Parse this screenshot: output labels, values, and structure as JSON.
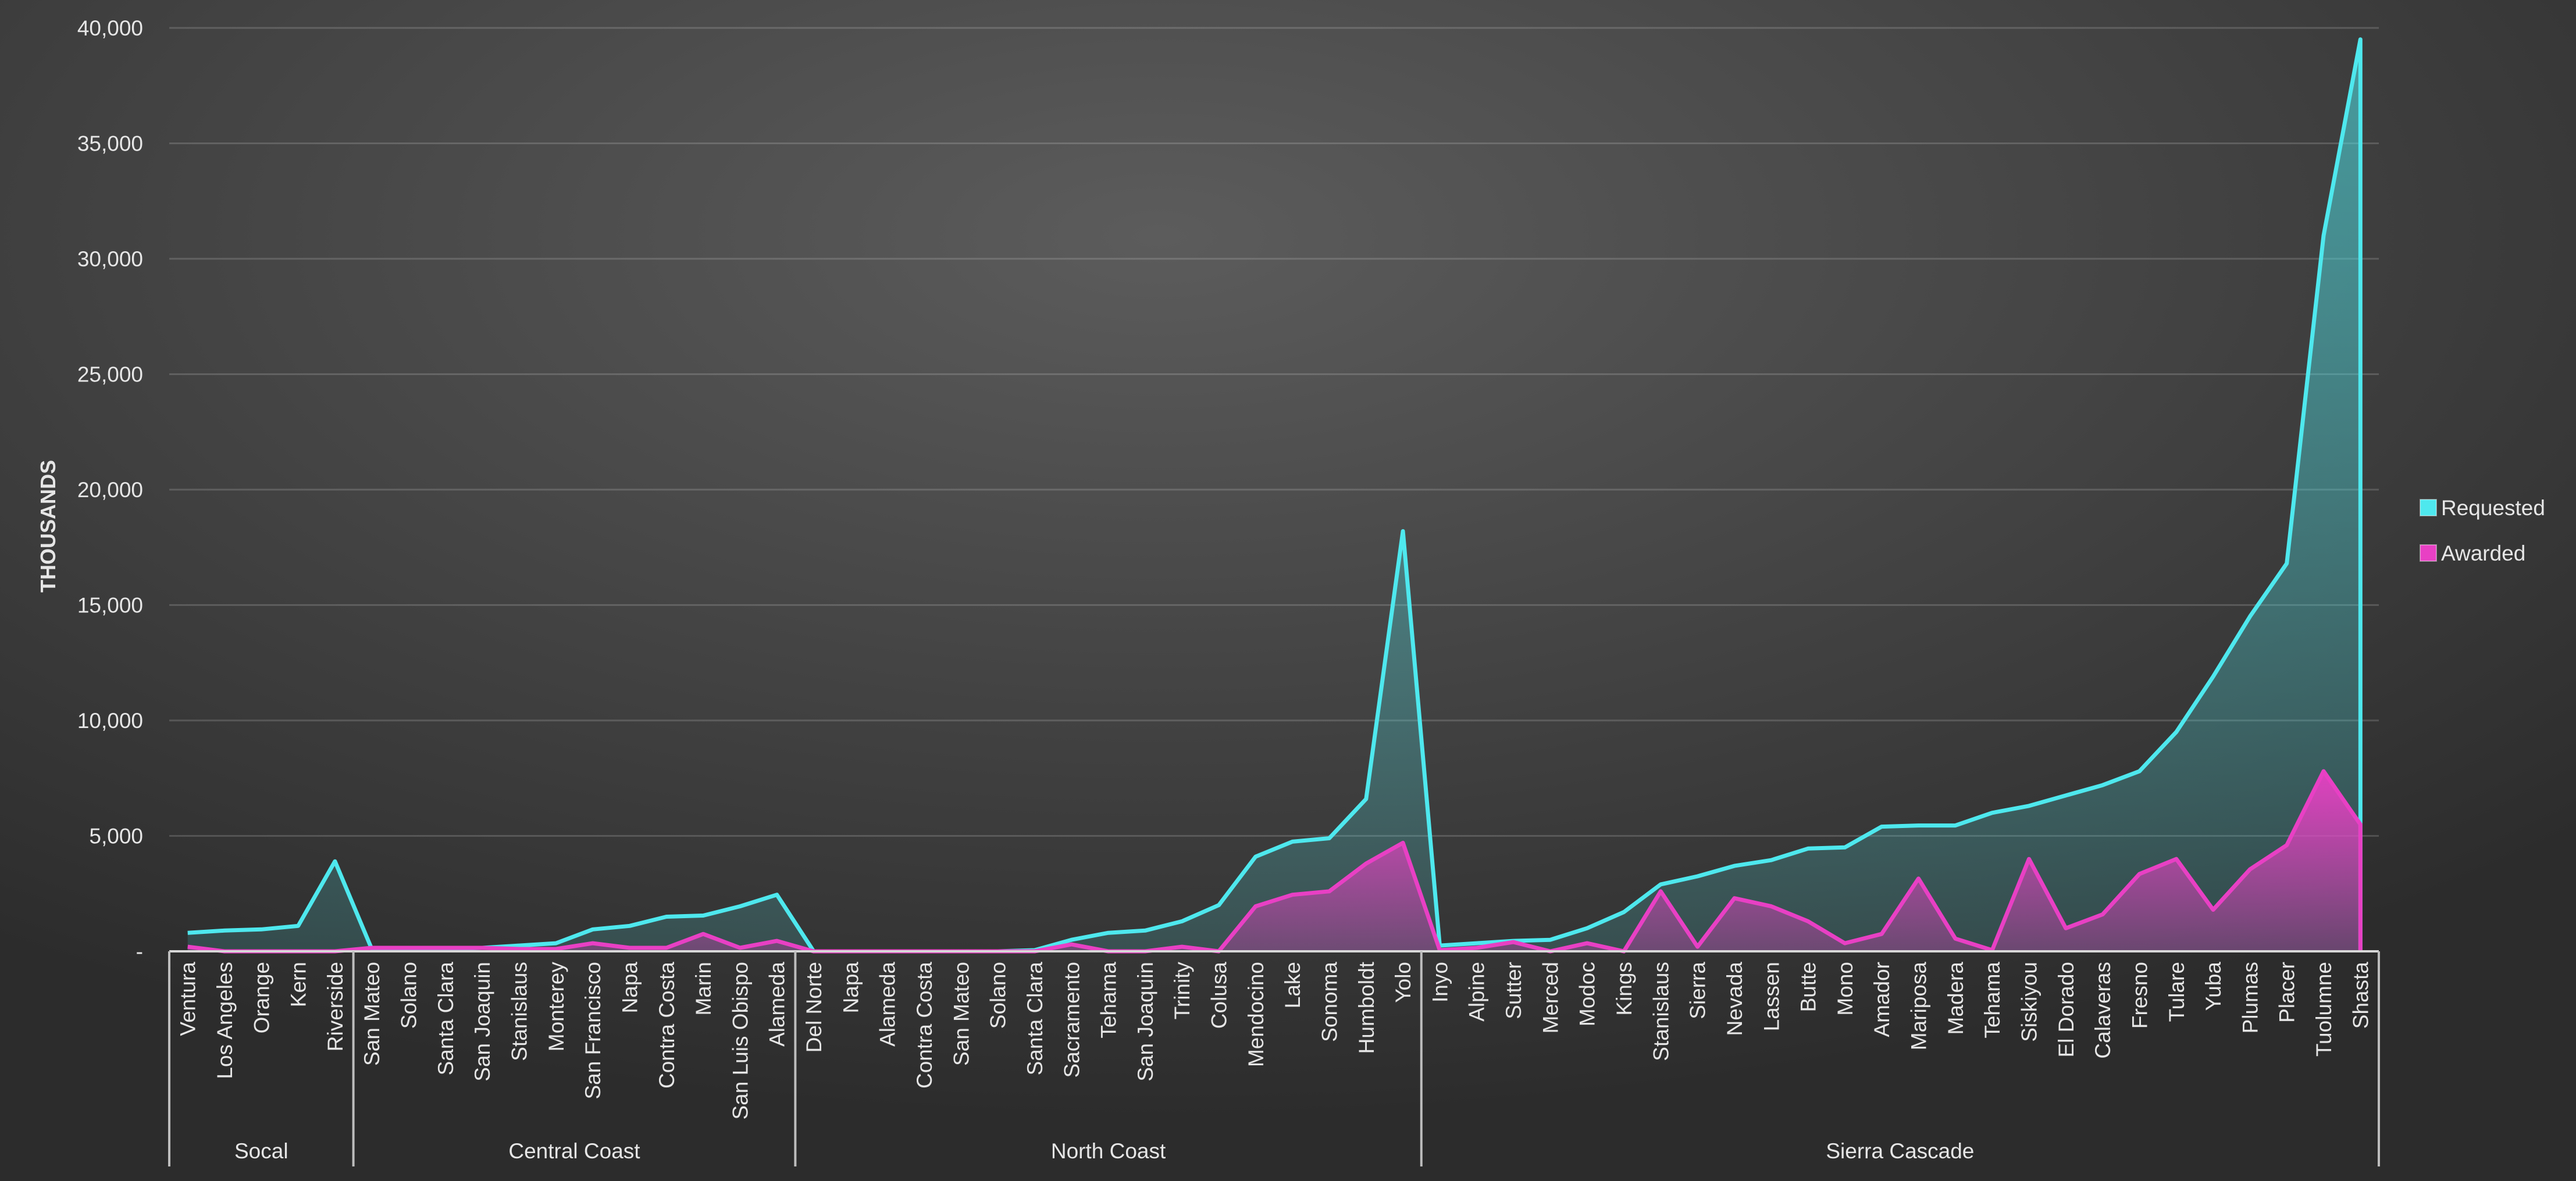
{
  "chart_data": {
    "type": "area",
    "y_label": "THOUSANDS",
    "groups": [
      {
        "name": "Socal",
        "categories": [
          "Ventura",
          "Los Angeles",
          "Orange",
          "Kern",
          "Riverside"
        ]
      },
      {
        "name": "Central Coast",
        "categories": [
          "San Mateo",
          "Solano",
          "Santa Clara",
          "San Joaquin",
          "Stanislaus",
          "Monterey",
          "San Francisco",
          "Napa",
          "Contra Costa",
          "Marin",
          "San Luis Obispo",
          "Alameda"
        ]
      },
      {
        "name": "North Coast",
        "categories": [
          "Del Norte",
          "Napa",
          "Alameda",
          "Contra Costa",
          "San Mateo",
          "Solano",
          "Santa Clara",
          "Sacramento",
          "Tehama",
          "San Joaquin",
          "Trinity",
          "Colusa",
          "Mendocino",
          "Lake",
          "Sonoma",
          "Humboldt",
          "Yolo"
        ]
      },
      {
        "name": "Sierra Cascade",
        "categories": [
          "Inyo",
          "Alpine",
          "Sutter",
          "Merced",
          "Modoc",
          "Kings",
          "Stanislaus",
          "Sierra",
          "Nevada",
          "Lassen",
          "Butte",
          "Mono",
          "Amador",
          "Mariposa",
          "Madera",
          "Tehama",
          "Siskiyou",
          "El Dorado",
          "Calaveras",
          "Fresno",
          "Tulare",
          "Yuba",
          "Plumas",
          "Placer",
          "Tuolumne",
          "Shasta"
        ]
      }
    ],
    "series": [
      {
        "name": "Requested",
        "color": "#4ee8ee",
        "values": [
          800,
          900,
          950,
          1100,
          3900,
          100,
          100,
          100,
          150,
          250,
          350,
          950,
          1100,
          1500,
          1550,
          1950,
          2450,
          0,
          0,
          0,
          0,
          0,
          0,
          50,
          500,
          800,
          900,
          1300,
          2000,
          4100,
          4750,
          4900,
          6600,
          18200,
          250,
          350,
          450,
          500,
          1000,
          1700,
          2900,
          3250,
          3700,
          3950,
          4450,
          4500,
          5400,
          5450,
          5450,
          6000,
          6300,
          6750,
          7200,
          7800,
          9500,
          11900,
          14500,
          16800,
          31000,
          39500
        ]
      },
      {
        "name": "Awarded",
        "color": "#e840c4",
        "values": [
          200,
          0,
          0,
          0,
          0,
          150,
          150,
          150,
          150,
          100,
          100,
          350,
          150,
          150,
          750,
          150,
          450,
          0,
          0,
          0,
          0,
          0,
          0,
          0,
          300,
          0,
          0,
          200,
          0,
          1950,
          2450,
          2600,
          3800,
          4700,
          50,
          150,
          400,
          0,
          350,
          0,
          2600,
          200,
          2300,
          1950,
          1300,
          350,
          750,
          3150,
          550,
          50,
          4000,
          1000,
          1600,
          3350,
          4000,
          1800,
          3550,
          4600,
          7800,
          5500
        ]
      }
    ],
    "ylim": [
      0,
      40000
    ],
    "yticks": [
      {
        "value": 0,
        "label": "-"
      },
      {
        "value": 5000,
        "label": "5,000"
      },
      {
        "value": 10000,
        "label": "10,000"
      },
      {
        "value": 15000,
        "label": "15,000"
      },
      {
        "value": 20000,
        "label": "20,000"
      },
      {
        "value": 25000,
        "label": "25,000"
      },
      {
        "value": 30000,
        "label": "30,000"
      },
      {
        "value": 35000,
        "label": "35,000"
      },
      {
        "value": 40000,
        "label": "40,000"
      }
    ],
    "grid": true,
    "legend": "right"
  }
}
